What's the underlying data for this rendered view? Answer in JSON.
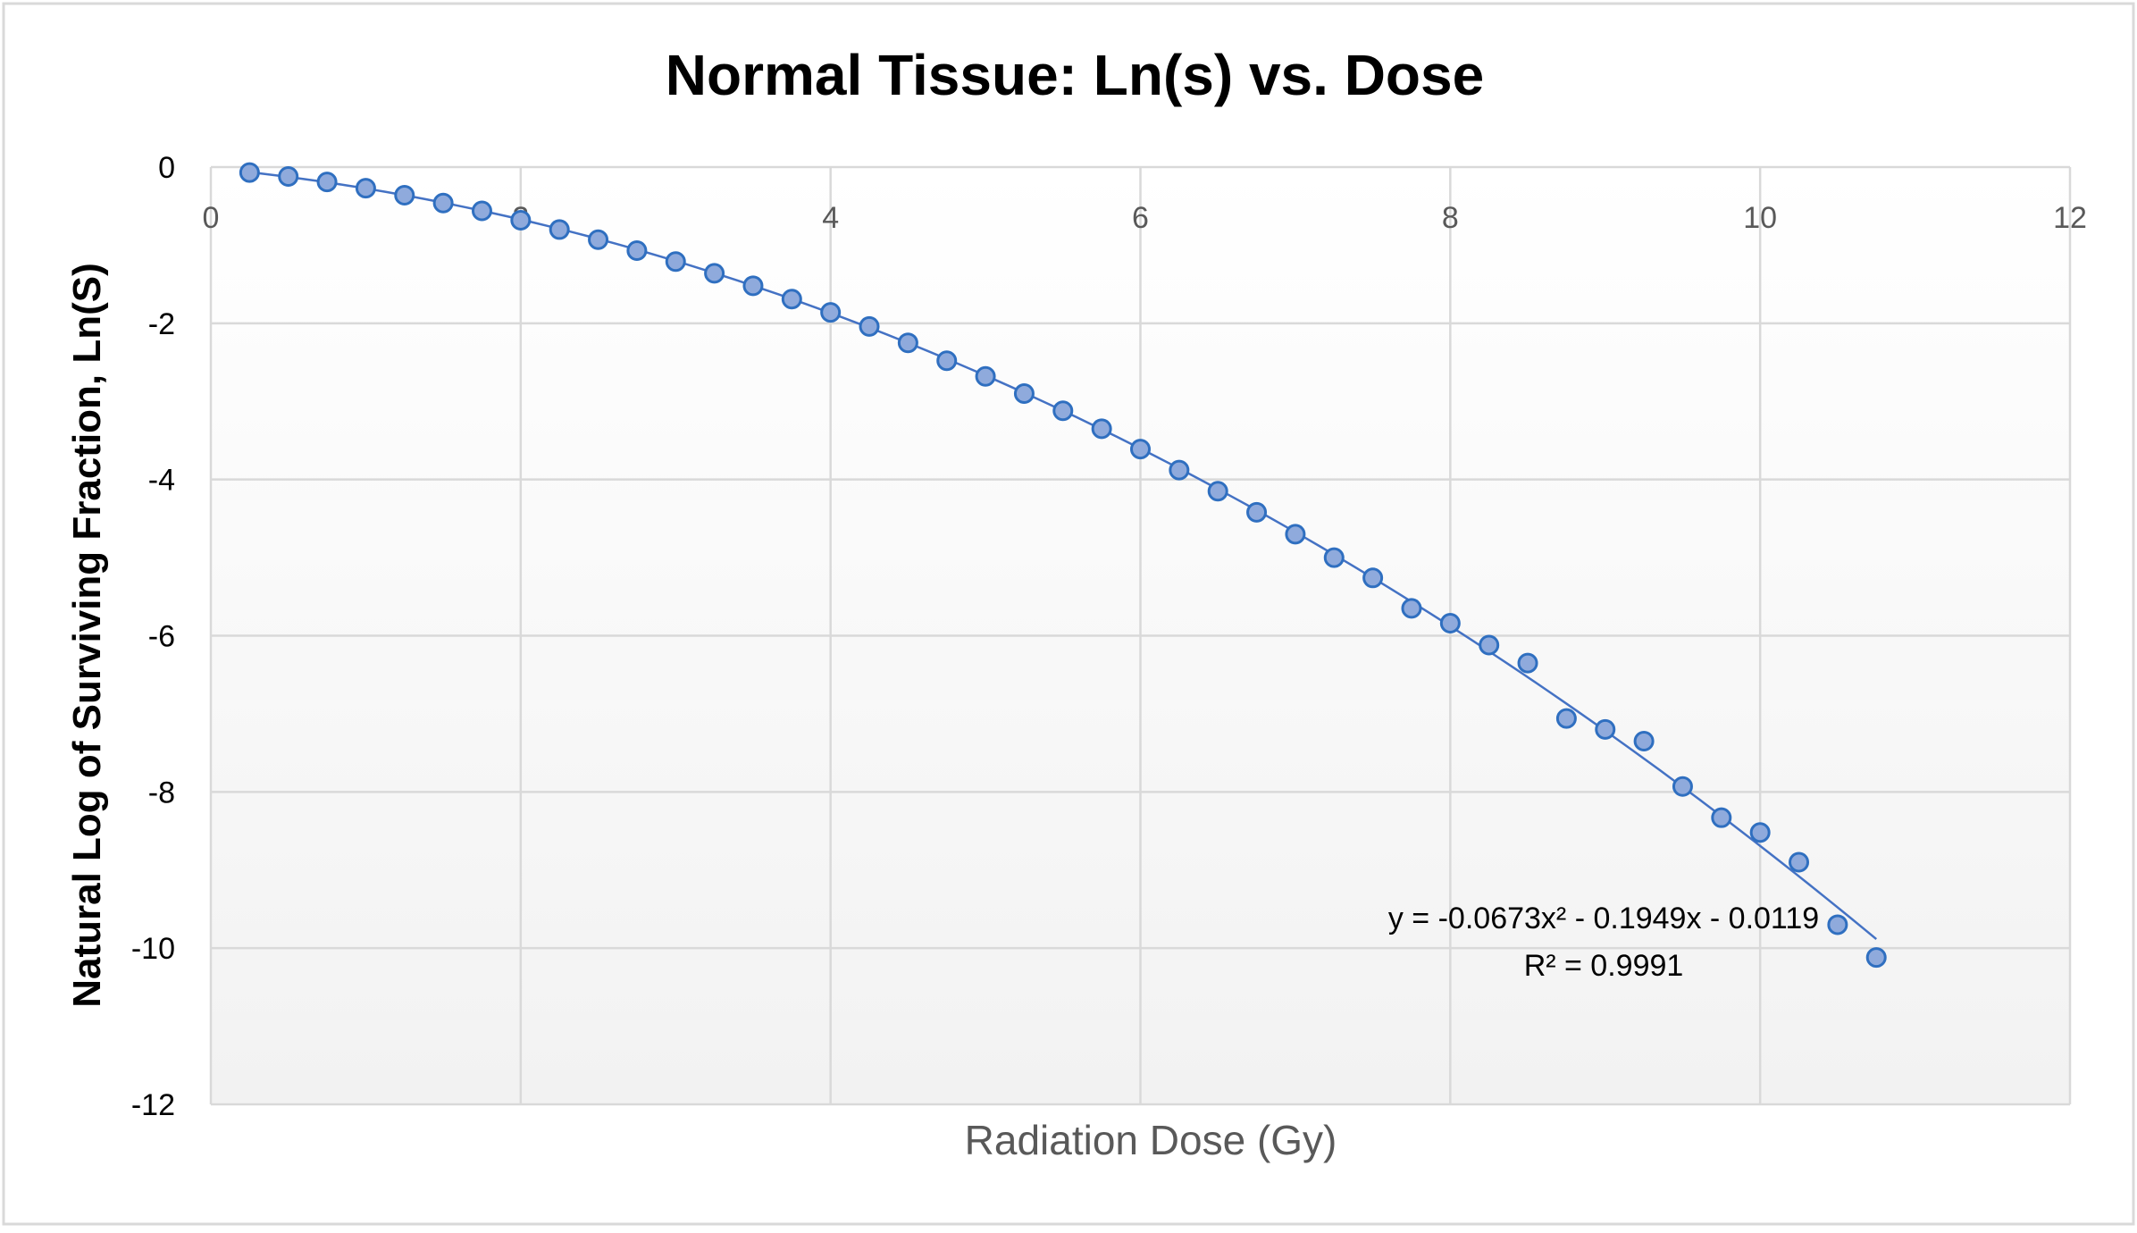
{
  "chart_data": {
    "type": "scatter",
    "title": "Normal Tissue: Ln(s) vs. Dose",
    "xlabel": "Radiation Dose (Gy)",
    "ylabel": "Natural Log of Surviving Fraction, Ln(S)",
    "xlim": [
      0,
      12
    ],
    "ylim": [
      -12,
      0
    ],
    "x_ticks": [
      0,
      2,
      4,
      6,
      8,
      10,
      12
    ],
    "y_ticks": [
      0,
      -2,
      -4,
      -6,
      -8,
      -10,
      -12
    ],
    "x_tick_labels": [
      "0",
      "2",
      "4",
      "6",
      "8",
      "10",
      "12"
    ],
    "y_tick_labels": [
      "0",
      "-2",
      "-4",
      "-6",
      "-8",
      "-10",
      "-12"
    ],
    "grid": true,
    "legend": "none",
    "series": [
      {
        "marker_color": "#8FAADC",
        "marker_edge_color": "#2F6FC0",
        "x": [
          0.25,
          0.5,
          0.75,
          1.0,
          1.25,
          1.5,
          1.75,
          2.0,
          2.25,
          2.5,
          2.75,
          3.0,
          3.25,
          3.5,
          3.75,
          4.0,
          4.25,
          4.5,
          4.75,
          5.0,
          5.25,
          5.5,
          5.75,
          6.0,
          6.25,
          6.5,
          6.75,
          7.0,
          7.25,
          7.5,
          7.75,
          8.0,
          8.25,
          8.5,
          8.75,
          9.0,
          9.25,
          9.5,
          9.75,
          10.0,
          10.25,
          10.5,
          10.75
        ],
        "y": [
          -0.07,
          -0.12,
          -0.19,
          -0.27,
          -0.36,
          -0.46,
          -0.56,
          -0.68,
          -0.8,
          -0.93,
          -1.07,
          -1.21,
          -1.36,
          -1.52,
          -1.69,
          -1.86,
          -2.04,
          -2.25,
          -2.48,
          -2.68,
          -2.9,
          -3.12,
          -3.35,
          -3.61,
          -3.88,
          -4.15,
          -4.42,
          -4.7,
          -5.0,
          -5.26,
          -5.65,
          -5.84,
          -6.12,
          -6.35,
          -7.06,
          -7.2,
          -7.35,
          -7.93,
          -8.33,
          -8.52,
          -8.9,
          -9.7,
          -10.12
        ]
      }
    ],
    "trendline": {
      "type": "polynomial",
      "order": 2,
      "coefficients": [
        -0.0673,
        -0.1949,
        -0.0119
      ],
      "x_range": [
        0.25,
        10.75
      ],
      "color": "#4472C4",
      "equation_label": "y = -0.0673x² - 0.1949x - 0.0119",
      "r2_label": "R² = 0.9991"
    },
    "colors": {
      "plot_background_top": "#FFFFFF",
      "plot_background_bottom": "#F2F2F2",
      "gridline": "#D9D9D9",
      "tick_label": "#595959",
      "title": "#000000"
    }
  }
}
